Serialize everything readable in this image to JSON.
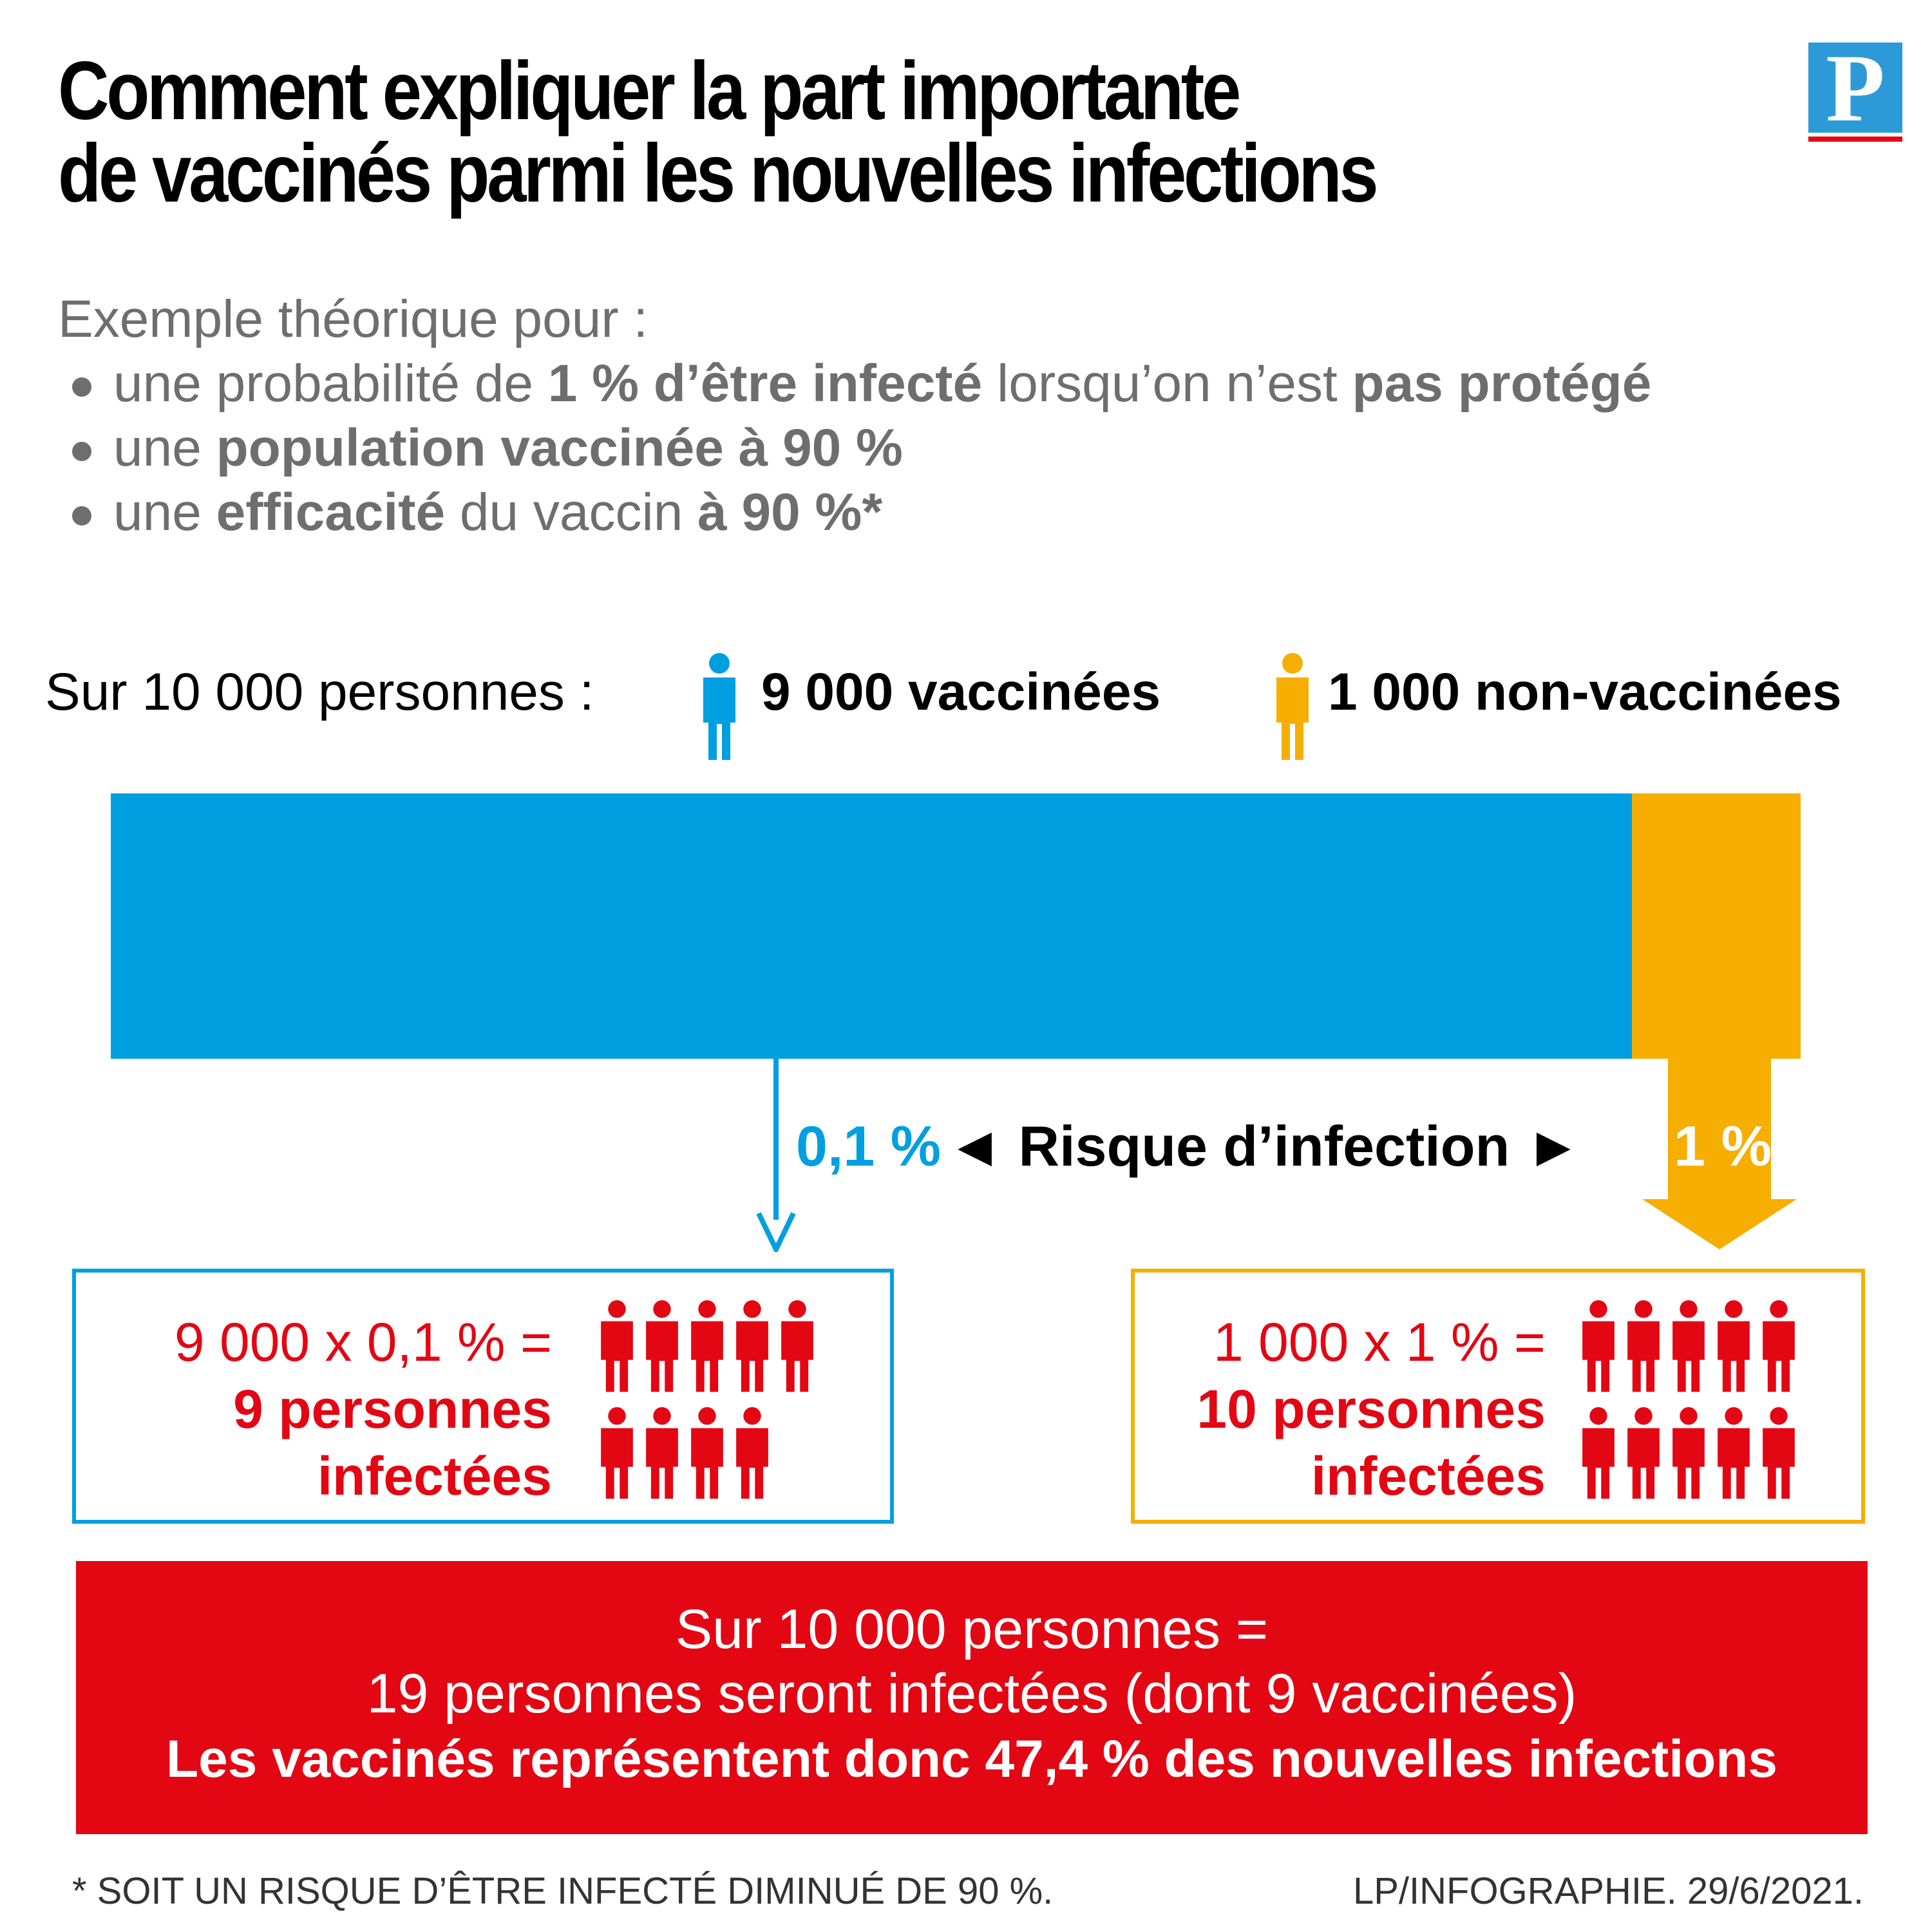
{
  "header": {
    "title_line1": "Comment expliquer la part importante",
    "title_line2": "de vaccinés parmi les nouvelles infections",
    "logo_letter": "P"
  },
  "intro": {
    "lead": "Exemple théorique pour :",
    "b1_pre": "une probabilité de ",
    "b1_bold": "1 % d’être infecté",
    "b1_mid": " lorsqu’on n’est ",
    "b1_bold2": "pas protégé",
    "b2_pre": "une ",
    "b2_bold": "population vaccinée à 90 %",
    "b3_pre": "une ",
    "b3_bold": "efficacité",
    "b3_mid": " du vaccin ",
    "b3_bold2": "à 90 %*"
  },
  "legend": {
    "lead": "Sur 10 000 personnes :",
    "vaccinated": "9 000 vaccinées",
    "unvaccinated": "1 000 non-vaccinées",
    "person_icon": "person-icon"
  },
  "chart_data": {
    "type": "bar",
    "orientation": "horizontal-stacked",
    "total": 10000,
    "series": [
      {
        "name": "9 000 vaccinées",
        "value": 9000,
        "color": "#009fe0"
      },
      {
        "name": "1 000 non-vaccinées",
        "value": 1000,
        "color": "#f6ae00"
      }
    ],
    "risk": {
      "label": "◄ Risque d’infection ►",
      "vaccinated": "0,1 %",
      "unvaccinated": "1 %"
    }
  },
  "results": {
    "vaccinated": {
      "formula": "9 000 x 0,1 % =",
      "count_line": "9 personnes",
      "infected_line": "infectées",
      "icon_count": 9
    },
    "unvaccinated": {
      "formula": "1 000 x 1 % =",
      "count_line": "10 personnes",
      "infected_line": "infectées",
      "icon_count": 10
    }
  },
  "summary": {
    "line1": "Sur 10 000 personnes =",
    "line2": "19 personnes seront infectées (dont 9 vaccinées)",
    "line3": "Les vaccinés représentent donc 47,4 % des nouvelles infections"
  },
  "footer": {
    "note": "* SOIT UN RISQUE D’ÊTRE INFECTÉ DIMINUÉ DE 90 %.",
    "credit": "LP/INFOGRAPHIE.  29/6/2021."
  },
  "colors": {
    "vaccinated": "#009fe0",
    "unvaccinated": "#f6ae00",
    "infected": "#e30613"
  }
}
